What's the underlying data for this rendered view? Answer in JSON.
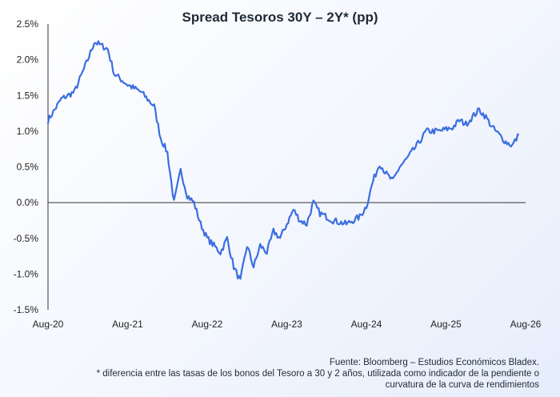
{
  "chart_data": {
    "type": "line",
    "title": "Spread Tesoros 30Y – 2Y* (pp)",
    "xlabel": "",
    "ylabel": "",
    "x_ticks": [
      "Aug-20",
      "Aug-21",
      "Aug-22",
      "Aug-23",
      "Aug-24",
      "Aug-25",
      "Aug-26"
    ],
    "y_ticks": [
      "2.5%",
      "2.0%",
      "1.5%",
      "1.0%",
      "0.5%",
      "0.0%",
      "-0.5%",
      "-1.0%",
      "-1.5%"
    ],
    "ylim": [
      -1.5,
      2.5
    ],
    "xlim": [
      "2020-08",
      "2026-08"
    ],
    "line_color": "#3b6ee0",
    "series": [
      {
        "x": [
          "2020-08",
          "2020-10",
          "2020-12",
          "2021-02",
          "2021-03",
          "2021-05",
          "2021-06",
          "2021-08",
          "2021-10",
          "2021-12",
          "2022-01",
          "2022-02",
          "2022-03",
          "2022-04",
          "2022-05",
          "2022-06",
          "2022-07",
          "2022-08",
          "2022-09",
          "2022-10",
          "2022-11",
          "2022-12",
          "2023-01",
          "2023-02",
          "2023-03",
          "2023-04",
          "2023-05",
          "2023-06",
          "2023-07",
          "2023-08",
          "2023-09",
          "2023-10",
          "2023-11",
          "2023-12",
          "2024-01",
          "2024-03",
          "2024-05",
          "2024-07",
          "2024-08",
          "2024-09",
          "2024-10",
          "2024-11",
          "2024-12",
          "2025-01",
          "2025-02",
          "2025-04",
          "2025-05",
          "2025-07",
          "2025-09",
          "2025-10",
          "2025-11",
          "2025-12",
          "2026-01",
          "2026-02",
          "2026-03",
          "2026-04",
          "2026-05",
          "2026-06",
          "2026-07"
        ],
        "values": [
          1.15,
          1.45,
          1.55,
          2.0,
          2.25,
          2.15,
          1.8,
          1.65,
          1.55,
          1.35,
          0.9,
          0.7,
          0.0,
          0.45,
          0.1,
          0.0,
          -0.3,
          -0.5,
          -0.6,
          -0.7,
          -0.5,
          -0.9,
          -1.1,
          -0.6,
          -0.9,
          -0.6,
          -0.7,
          -0.4,
          -0.5,
          -0.3,
          -0.1,
          -0.25,
          -0.3,
          0.0,
          -0.15,
          -0.25,
          -0.3,
          -0.2,
          -0.05,
          0.3,
          0.55,
          0.4,
          0.3,
          0.5,
          0.6,
          0.85,
          1.0,
          1.0,
          1.05,
          1.15,
          1.1,
          1.2,
          1.3,
          1.2,
          1.05,
          0.95,
          0.85,
          0.8,
          0.95
        ]
      }
    ]
  },
  "footer": {
    "source": "Fuente: Bloomberg – Estudios Económicos Bladex.",
    "note_line1": "* diferencia entre las tasas de los bonos del Tesoro a 30 y 2 años, utilizada como indicador de la pendiente o",
    "note_line2": "curvatura de la curva de rendimientos"
  }
}
